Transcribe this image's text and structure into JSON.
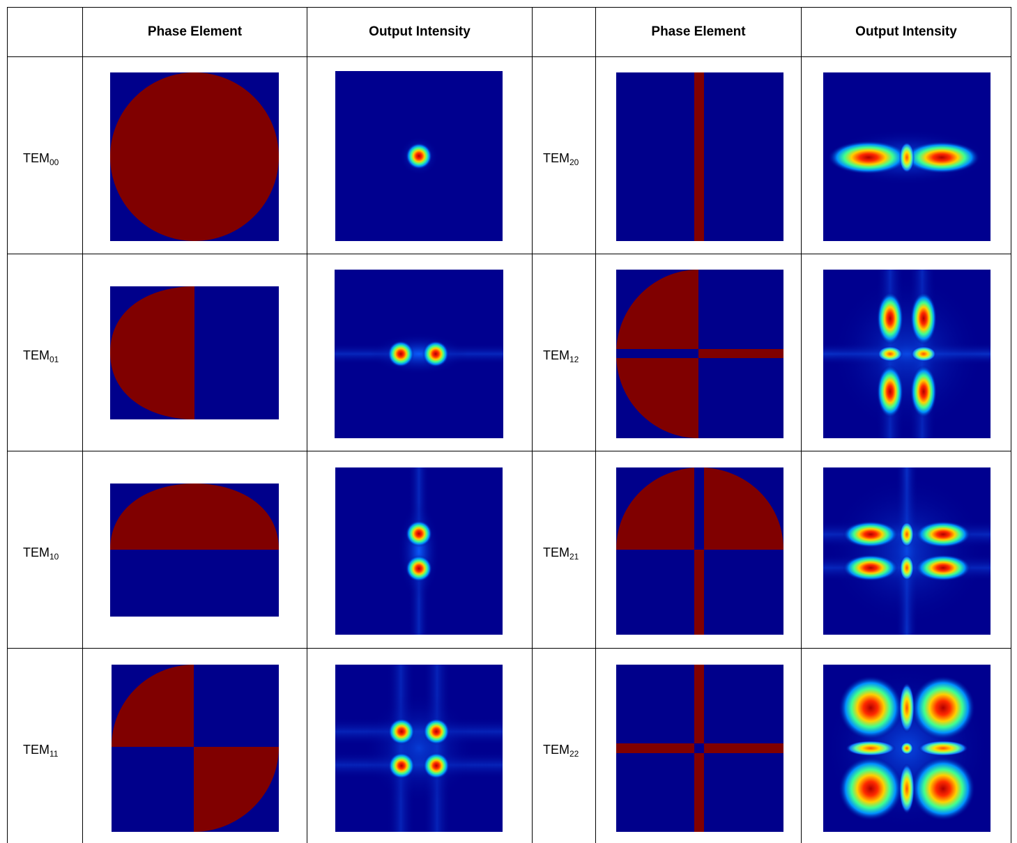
{
  "headers": {
    "phase_left": "Phase Element",
    "intensity_left": "Output Intensity",
    "phase_right": "Phase Element",
    "intensity_right": "Output Intensity"
  },
  "rows": [
    {
      "left": {
        "base": "TEM",
        "sub": "00"
      },
      "right": {
        "base": "TEM",
        "sub": "20"
      }
    },
    {
      "left": {
        "base": "TEM",
        "sub": "01"
      },
      "right": {
        "base": "TEM",
        "sub": "12"
      }
    },
    {
      "left": {
        "base": "TEM",
        "sub": "10"
      },
      "right": {
        "base": "TEM",
        "sub": "21"
      }
    },
    {
      "left": {
        "base": "TEM",
        "sub": "11"
      },
      "right": {
        "base": "TEM",
        "sub": "22"
      }
    }
  ],
  "colors": {
    "phase_background": "#00008b",
    "phase_shift": "#800000",
    "intensity_background": "#00008f",
    "intensity_peak": "#d40000"
  }
}
